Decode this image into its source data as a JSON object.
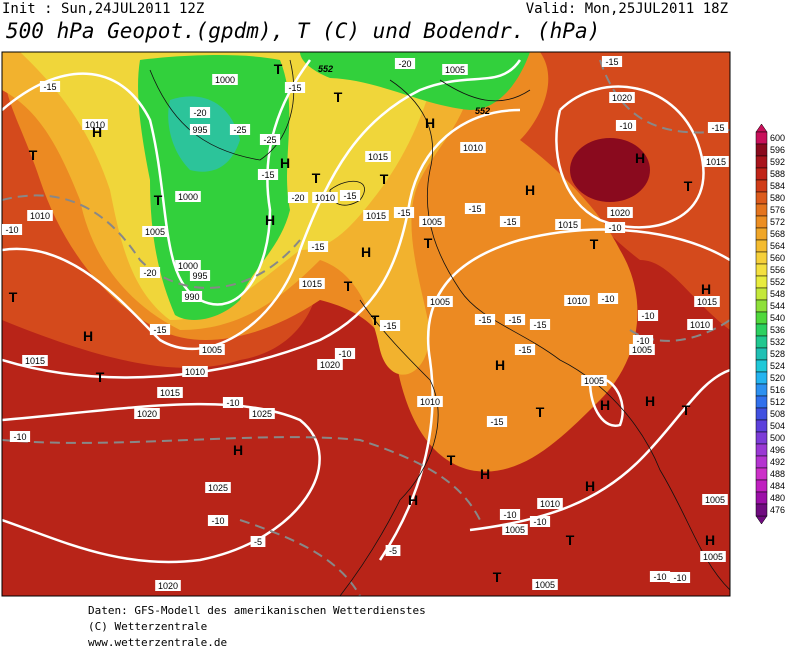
{
  "header": {
    "init": "Init : Sun,24JUL2011 12Z",
    "valid": "Valid: Mon,25JUL2011 18Z",
    "title": "500 hPa Geopot.(gpdm), T (C) und Bodendr. (hPa)"
  },
  "colorbar": {
    "ticks": [
      600,
      596,
      592,
      588,
      584,
      580,
      576,
      572,
      568,
      564,
      560,
      556,
      552,
      548,
      544,
      540,
      536,
      532,
      528,
      524,
      520,
      516,
      512,
      508,
      504,
      500,
      496,
      492,
      488,
      484,
      480,
      476
    ],
    "colors": [
      "#c8105a",
      "#8a0a1e",
      "#a8141c",
      "#c02418",
      "#d03c18",
      "#dc5a1c",
      "#e4741e",
      "#ec8e22",
      "#f0a628",
      "#f4bc30",
      "#f6d03a",
      "#f4e040",
      "#e8ec3e",
      "#c4e83a",
      "#8ee03a",
      "#50d83c",
      "#2cd060",
      "#20c890",
      "#20c0b4",
      "#20c8d8",
      "#24b4f0",
      "#2c90f0",
      "#3070ec",
      "#4050e0",
      "#5c40dc",
      "#7c3cd8",
      "#9a38d4",
      "#b434d0",
      "#cc30c8",
      "#c020c0",
      "#9c10a8",
      "#700c80"
    ]
  },
  "map": {
    "boxed_labels": [
      "1000",
      "-20",
      "995",
      "-25",
      "1000",
      "1005",
      "1000",
      "995",
      "990",
      "-20",
      "-15",
      "1005",
      "1010",
      "1015",
      "1015",
      "1020",
      "1010",
      "-10",
      "-15",
      "1010",
      "-10",
      "-10",
      "1025",
      "1025",
      "-10",
      "-5",
      "1020",
      "1020",
      "-10",
      "1015",
      "-15",
      "1010",
      "-15",
      "-20",
      "-15",
      "-25",
      "-15",
      "-20",
      "1005",
      "-15",
      "1020",
      "-10",
      "-15",
      "1015",
      "1020",
      "-10",
      "1015",
      "-15",
      "1015",
      "1015",
      "1010",
      "-15",
      "1005",
      "-15",
      "1010",
      "-10",
      "1015",
      "-10",
      "1010",
      "-10",
      "1005",
      "1005",
      "1010",
      "-15",
      "1005",
      "-15",
      "-15",
      "-15",
      "-15",
      "-15",
      "1010",
      "-10",
      "-10",
      "1005",
      "-5",
      "1005",
      "-10",
      "-10",
      "1005",
      "1005"
    ],
    "contour_values": [
      "552",
      "552"
    ],
    "high_centers": [
      "H",
      "H",
      "H",
      "H",
      "H",
      "H",
      "H",
      "H",
      "H",
      "H",
      "H",
      "H",
      "H",
      "H",
      "H",
      "H",
      "H"
    ],
    "low_centers": [
      "T",
      "T",
      "T",
      "T",
      "T",
      "T",
      "T",
      "T",
      "T",
      "T",
      "T",
      "T",
      "T",
      "T",
      "T",
      "T",
      "T",
      "T"
    ]
  },
  "footer": {
    "line1": "Daten: GFS-Modell des amerikanischen Wetterdienstes",
    "line2": "(C) Wetterzentrale",
    "line3": "www.wetterzentrale.de"
  }
}
